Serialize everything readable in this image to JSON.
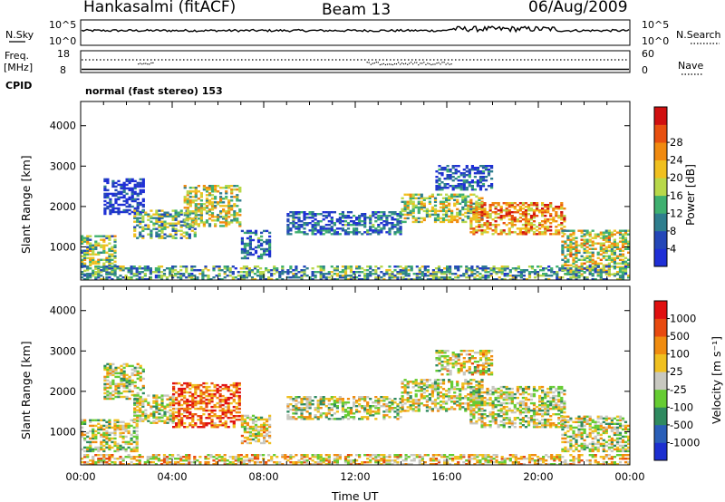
{
  "header": {
    "station": "Hankasalmi (fitACF)",
    "beam": "Beam 13",
    "date": "06/Aug/2009"
  },
  "top_strips": {
    "nsky_label": "N.Sky",
    "nsearch_label": "N.Search",
    "count_ticks_left": [
      "10^5",
      "10^0"
    ],
    "count_ticks_right": [
      "10^5",
      "10^0"
    ],
    "freq_label": "Freq.",
    "freq_unit": "[MHz]",
    "freq_ticks": [
      "18",
      "8"
    ],
    "nave_label": "Nave",
    "nave_ticks": [
      "60",
      "0"
    ],
    "cpid_label": "CPID",
    "cpid_text": "normal (fast stereo) 153"
  },
  "chart_data": [
    {
      "type": "heatmap",
      "name": "power",
      "ylabel": "Slant Range [km]",
      "xlabel": "",
      "ylim": [
        180,
        4600
      ],
      "yticks": [
        "1000",
        "2000",
        "3000",
        "4000"
      ],
      "xlim_hours": [
        0,
        24
      ],
      "colorbar_label": "Power [dB]",
      "colorbar_ticks": [
        "4",
        "8",
        "12",
        "16",
        "20",
        "24",
        "28"
      ],
      "colorbar_colors": [
        "#1f2fd6",
        "#2447b8",
        "#2f7e8e",
        "#3fb070",
        "#b8d84a",
        "#f0c020",
        "#f08a10",
        "#e85010",
        "#d01010"
      ],
      "echo_regions": [
        {
          "t": [
            0.0,
            1.5
          ],
          "r": [
            300,
            1250
          ],
          "level": 0.45
        },
        {
          "t": [
            1.0,
            2.7
          ],
          "r": [
            1800,
            2700
          ],
          "level": 0.05
        },
        {
          "t": [
            2.3,
            5.0
          ],
          "r": [
            1200,
            1900
          ],
          "level": 0.4
        },
        {
          "t": [
            4.5,
            7.0
          ],
          "r": [
            1500,
            2500
          ],
          "level": 0.5
        },
        {
          "t": [
            7.0,
            8.3
          ],
          "r": [
            700,
            1400
          ],
          "level": 0.2
        },
        {
          "t": [
            9.0,
            14.0
          ],
          "r": [
            1300,
            1850
          ],
          "level": 0.2
        },
        {
          "t": [
            14.0,
            17.5
          ],
          "r": [
            1600,
            2300
          ],
          "level": 0.5
        },
        {
          "t": [
            15.5,
            18.0
          ],
          "r": [
            2400,
            3000
          ],
          "level": 0.15
        },
        {
          "t": [
            17.0,
            21.2
          ],
          "r": [
            1300,
            2100
          ],
          "level": 0.7
        },
        {
          "t": [
            21.0,
            24.0
          ],
          "r": [
            300,
            1400
          ],
          "level": 0.55
        },
        {
          "t": [
            0.0,
            24.0
          ],
          "r": [
            180,
            500
          ],
          "level": 0.35
        }
      ]
    },
    {
      "type": "heatmap",
      "name": "velocity",
      "ylabel": "Slant Range [km]",
      "xlabel": "Time UT",
      "ylim": [
        180,
        4600
      ],
      "yticks": [
        "1000",
        "2000",
        "3000",
        "4000"
      ],
      "xticks": [
        "00:00",
        "04:00",
        "08:00",
        "12:00",
        "16:00",
        "20:00",
        "00:00"
      ],
      "xlim_hours": [
        0,
        24
      ],
      "colorbar_label": "Velocity [m s⁻¹]",
      "colorbar_ticks": [
        "1000",
        "500",
        "100",
        "25",
        "-25",
        "-100",
        "-500",
        "-1000"
      ],
      "colorbar_colors": [
        "#1c2fd0",
        "#2a5fb8",
        "#2f8a60",
        "#66cc33",
        "#c8c8c0",
        "#f0c020",
        "#f08c10",
        "#e84a10",
        "#e01010"
      ],
      "echo_regions": [
        {
          "t": [
            0.0,
            2.5
          ],
          "r": [
            500,
            1300
          ],
          "level": 0.5
        },
        {
          "t": [
            1.0,
            2.7
          ],
          "r": [
            1800,
            2700
          ],
          "level": 0.5
        },
        {
          "t": [
            2.3,
            4.0
          ],
          "r": [
            1200,
            1900
          ],
          "level": 0.5
        },
        {
          "t": [
            4.0,
            7.0
          ],
          "r": [
            1100,
            2200
          ],
          "level": 0.8
        },
        {
          "t": [
            7.0,
            8.3
          ],
          "r": [
            700,
            1400
          ],
          "level": 0.55
        },
        {
          "t": [
            9.0,
            14.0
          ],
          "r": [
            1300,
            1850
          ],
          "level": 0.5
        },
        {
          "t": [
            14.0,
            17.5
          ],
          "r": [
            1500,
            2300
          ],
          "level": 0.5
        },
        {
          "t": [
            15.5,
            18.0
          ],
          "r": [
            2400,
            3000
          ],
          "level": 0.55
        },
        {
          "t": [
            17.0,
            21.2
          ],
          "r": [
            1100,
            2100
          ],
          "level": 0.5
        },
        {
          "t": [
            21.0,
            24.0
          ],
          "r": [
            500,
            1400
          ],
          "level": 0.5
        },
        {
          "t": [
            0.0,
            24.0
          ],
          "r": [
            180,
            450
          ],
          "level": 0.6
        }
      ]
    }
  ]
}
